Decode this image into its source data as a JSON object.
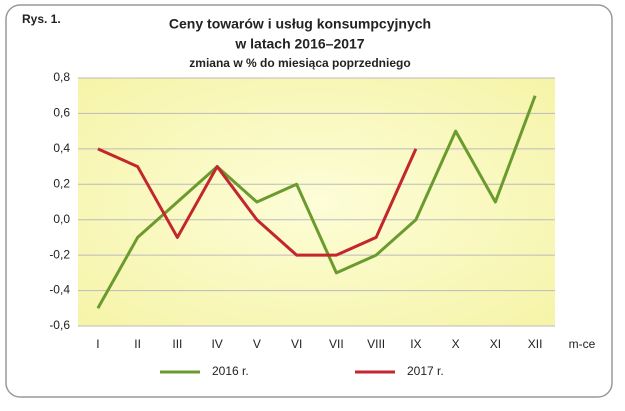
{
  "chart_data": {
    "type": "line",
    "figure_label": "Rys. 1.",
    "title": [
      "Ceny towarów i usług konsumpcyjnych",
      "w latach 2016–2017"
    ],
    "subtitle": "zmiana w % do miesiąca poprzedniego",
    "x_label": "m-ce",
    "categories": [
      "I",
      "II",
      "III",
      "IV",
      "V",
      "VI",
      "VII",
      "VIII",
      "IX",
      "X",
      "XI",
      "XII"
    ],
    "series": [
      {
        "name": "2016 r.",
        "color": "#6b9b2f",
        "values": [
          -0.5,
          -0.1,
          0.1,
          0.3,
          0.1,
          0.2,
          -0.3,
          -0.2,
          0.0,
          0.5,
          0.1,
          0.7
        ]
      },
      {
        "name": "2017 r.",
        "color": "#c3262c",
        "values": [
          0.4,
          0.3,
          -0.1,
          0.3,
          0.0,
          -0.2,
          -0.2,
          -0.1,
          0.4,
          null,
          null,
          null
        ]
      }
    ],
    "ylim": [
      -0.6,
      0.8
    ],
    "yticks": [
      {
        "value": -0.6,
        "label": "-0,6"
      },
      {
        "value": -0.4,
        "label": "-0,4"
      },
      {
        "value": -0.2,
        "label": "-0,2"
      },
      {
        "value": 0,
        "label": "0,0"
      },
      {
        "value": 0.2,
        "label": "0,2"
      },
      {
        "value": 0.4,
        "label": "0,4"
      },
      {
        "value": 0.6,
        "label": "0,6"
      },
      {
        "value": 0.8,
        "label": "0,8"
      }
    ],
    "grid": true,
    "legend": "bottom"
  }
}
